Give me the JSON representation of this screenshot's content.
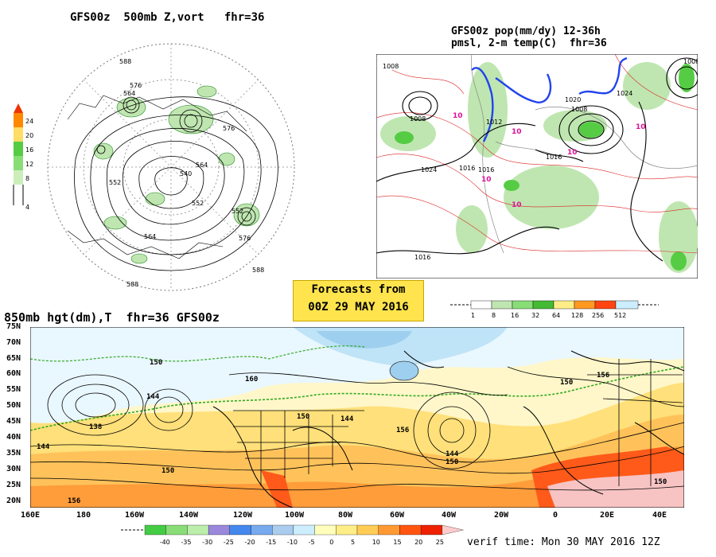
{
  "panel_500mb": {
    "title": "GFS00z  500mb Z,vort   fhr=36",
    "colorbar_ticks": [
      "24",
      "20",
      "16",
      "12",
      "8",
      "4"
    ],
    "contour_labels": [
      "588",
      "576",
      "564",
      "552",
      "540",
      "564",
      "552",
      "576",
      "564",
      "576",
      "588",
      "588",
      "552"
    ]
  },
  "panel_pop": {
    "title_line1": "GFS00z pop(mm/dy) 12-36h",
    "title_line2": "pmsl, 2-m temp(C)  fhr=36",
    "pressure_labels": [
      "1008",
      "1008",
      "1012",
      "1016",
      "1024",
      "1016",
      "1008",
      "1020",
      "1016",
      "1024",
      "1016",
      "1008"
    ],
    "temp_labels": [
      "10",
      "10",
      "10",
      "10",
      "10",
      "10"
    ],
    "colorbar_ticks": [
      "1",
      "8",
      "16",
      "32",
      "64",
      "128",
      "256",
      "512"
    ]
  },
  "banner": {
    "line1": "Forecasts from",
    "line2": "00Z 29 MAY 2016"
  },
  "panel_850mb": {
    "title": "850mb hgt(dm),T  fhr=36 GFS00z",
    "lat_labels": [
      "75N",
      "70N",
      "65N",
      "60N",
      "55N",
      "50N",
      "45N",
      "40N",
      "35N",
      "30N",
      "25N",
      "20N"
    ],
    "lon_labels": [
      "160E",
      "180",
      "160W",
      "140W",
      "120W",
      "100W",
      "80W",
      "60W",
      "40W",
      "20W",
      "0",
      "20E",
      "40E"
    ],
    "contour_labels": [
      "150",
      "160",
      "144",
      "138",
      "144",
      "150",
      "150",
      "144",
      "156",
      "144",
      "150",
      "156",
      "150",
      "156",
      "150"
    ],
    "colorbar_ticks": [
      "-40",
      "-35",
      "-30",
      "-25",
      "-20",
      "-15",
      "-10",
      "-5",
      "0",
      "5",
      "10",
      "15",
      "20",
      "25"
    ],
    "colorbar_colors": [
      "#44cc44",
      "#88dd77",
      "#bbeeaa",
      "#9a88dd",
      "#4488ee",
      "#77aaee",
      "#aaccee",
      "#cceeff",
      "#ffffbb",
      "#ffee88",
      "#ffcc55",
      "#ff9933",
      "#ff5511",
      "#ee2200",
      "#ffcccc"
    ]
  },
  "verif": "verif time: Mon 30 MAY 2016 12Z"
}
